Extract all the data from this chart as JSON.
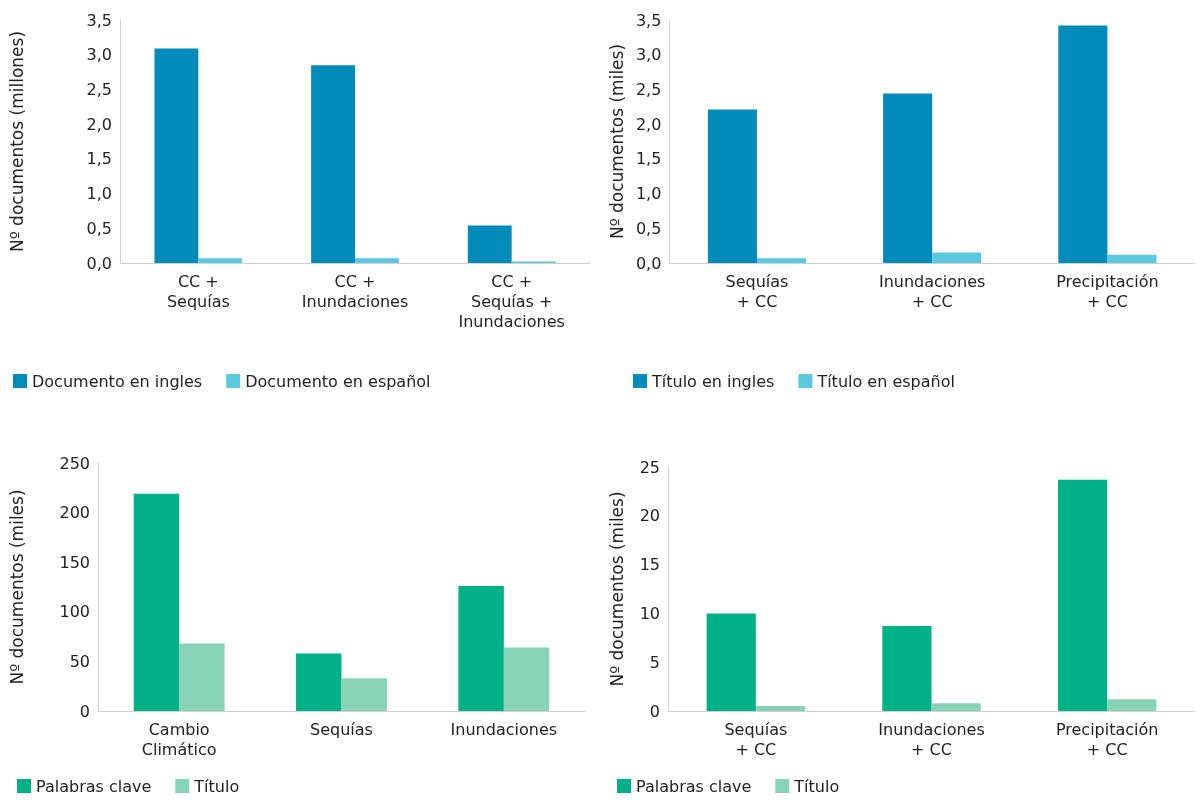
{
  "chart_data": [
    {
      "type": "bar",
      "ylabel": "Nº documentos (millones)",
      "categories": [
        "CC +\nSequías",
        "CC +\nInundaciones",
        "CC +\nSequías +\nInundaciones"
      ],
      "series": [
        {
          "name": "Documento en ingles",
          "color": "#008bbb",
          "values": [
            3.09,
            2.85,
            0.54
          ]
        },
        {
          "name": "Documento en español",
          "color": "#5bc8e0",
          "values": [
            0.07,
            0.07,
            0.02
          ]
        }
      ],
      "ylim": [
        0,
        3.5
      ],
      "yticks": [
        {
          "value": 0,
          "label": "0,0"
        },
        {
          "value": 0.5,
          "label": "0,5"
        },
        {
          "value": 1,
          "label": "1,0"
        },
        {
          "value": 1.5,
          "label": "1,5"
        },
        {
          "value": 2,
          "label": "2,0"
        },
        {
          "value": 2.5,
          "label": "2,5"
        },
        {
          "value": 3,
          "label": "3,0"
        },
        {
          "value": 3.5,
          "label": "3,5"
        }
      ],
      "grid": false,
      "legend": "bottom"
    },
    {
      "type": "bar",
      "ylabel": "Nº documentos (miles)",
      "categories": [
        "Sequías\n+ CC",
        "Inundaciones\n+ CC",
        "Precipitación\n+ CC"
      ],
      "series": [
        {
          "name": "Título en ingles",
          "color": "#008bbb",
          "values": [
            2.21,
            2.44,
            3.42
          ]
        },
        {
          "name": "Título en español",
          "color": "#5bc8e0",
          "values": [
            0.07,
            0.15,
            0.12
          ]
        }
      ],
      "ylim": [
        0,
        3.5
      ],
      "yticks": [
        {
          "value": 0,
          "label": "0,0"
        },
        {
          "value": 0.5,
          "label": "0,5"
        },
        {
          "value": 1,
          "label": "1,0"
        },
        {
          "value": 1.5,
          "label": "1,5"
        },
        {
          "value": 2,
          "label": "2,0"
        },
        {
          "value": 2.5,
          "label": "2,5"
        },
        {
          "value": 3,
          "label": "3,0"
        },
        {
          "value": 3.5,
          "label": "3,5"
        }
      ],
      "grid": false,
      "legend": "bottom"
    },
    {
      "type": "bar",
      "ylabel": "Nº documentos (miles)",
      "categories": [
        "Cambio\nClimático",
        "Sequías",
        "Inundaciones"
      ],
      "series": [
        {
          "name": "Palabras clave",
          "color": "#00b086",
          "values": [
            219,
            58,
            126
          ]
        },
        {
          "name": "Título",
          "color": "#88d3b8",
          "values": [
            68,
            33,
            64
          ]
        }
      ],
      "ylim": [
        0,
        250
      ],
      "yticks": [
        0,
        50,
        100,
        150,
        200,
        250
      ],
      "grid": false,
      "legend": "bottom"
    },
    {
      "type": "bar",
      "ylabel": "Nº documentos (miles)",
      "categories": [
        "Sequías\n+ CC",
        "Inundaciones\n+ CC",
        "Precipitación\n+ CC"
      ],
      "series": [
        {
          "name": "Palabras clave",
          "color": "#00b086",
          "values": [
            10,
            8.7,
            23.7
          ]
        },
        {
          "name": "Título",
          "color": "#88d3b8",
          "values": [
            0.5,
            0.8,
            1.2
          ]
        }
      ],
      "ylim": [
        0,
        25
      ],
      "yticks": [
        0,
        5,
        10,
        15,
        20,
        25
      ],
      "grid": false,
      "legend": "bottom"
    }
  ]
}
